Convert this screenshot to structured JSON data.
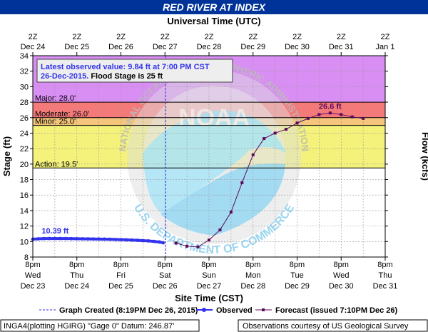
{
  "header": {
    "title": "RED RIVER AT INDEX"
  },
  "top_axis": {
    "title": "Universal Time (UTC)",
    "ticks": [
      {
        "x": 0,
        "l1": "2Z",
        "l2": "Dec 24"
      },
      {
        "x": 1,
        "l1": "2Z",
        "l2": "Dec 25"
      },
      {
        "x": 2,
        "l1": "2Z",
        "l2": "Dec 26"
      },
      {
        "x": 3,
        "l1": "2Z",
        "l2": "Dec 27"
      },
      {
        "x": 4,
        "l1": "2Z",
        "l2": "Dec 28"
      },
      {
        "x": 5,
        "l1": "2Z",
        "l2": "Dec 29"
      },
      {
        "x": 6,
        "l1": "2Z",
        "l2": "Dec 30"
      },
      {
        "x": 7,
        "l1": "2Z",
        "l2": "Dec 31"
      },
      {
        "x": 8,
        "l1": "2Z",
        "l2": "Jan  1"
      }
    ]
  },
  "info_box": {
    "line1": "Latest observed value: 9.84 ft at 7:00 PM CST",
    "date": "26-Dec-2015.",
    "flood_text": " Flood Stage is 25 ft"
  },
  "legend": {
    "graph_created": "Graph Created (8:19PM Dec 26, 2015)",
    "observed": "Observed",
    "forecast": "Forecast (issued 7:10PM Dec 26)"
  },
  "footer": {
    "datum": "INGA4(plotting HGIRG) \"Gage 0\" Datum: 246.87'",
    "credit": "Observations courtesy of US Geological Survey"
  },
  "watermark": {
    "ring_text": "NATIONAL OCEANIC AND ATMOSPHERIC ADMINISTRATION",
    "logo_text": "NOAA",
    "commerce_text": "U.S. DEPARTMENT OF COMMERCE"
  },
  "colors": {
    "title_bg": "#003399",
    "major": "#d88ef2",
    "moderate": "#f47a7a",
    "minor": "#f4c57a",
    "action": "#f4f27a",
    "observed": "#3333ee",
    "forecast": "#5a0a5a",
    "created_line": "#3333ee",
    "info_text": "#3333ee"
  },
  "chart_data": {
    "type": "line",
    "title": "RED RIVER AT INDEX",
    "xlabel": "Site Time (CST)",
    "ylabel": "Stage (ft)",
    "ylabel_right": "Flow (kcfs)",
    "x_unit_note": "x values are days after 8pm Wed Dec 23 (CST)",
    "xlim": [
      0,
      8
    ],
    "ylim": [
      8,
      34
    ],
    "yticks": [
      8,
      10,
      12,
      14,
      16,
      18,
      20,
      22,
      24,
      26,
      28,
      30,
      32,
      34
    ],
    "x_ticks": [
      {
        "x": 0,
        "l1": "8pm",
        "l2": "Wed",
        "l3": "Dec 23"
      },
      {
        "x": 1,
        "l1": "8pm",
        "l2": "Thu",
        "l3": "Dec 24"
      },
      {
        "x": 2,
        "l1": "8pm",
        "l2": "Fri",
        "l3": "Dec 25"
      },
      {
        "x": 3,
        "l1": "8pm",
        "l2": "Sat",
        "l3": "Dec 26"
      },
      {
        "x": 4,
        "l1": "8pm",
        "l2": "Sun",
        "l3": "Dec 27"
      },
      {
        "x": 5,
        "l1": "8pm",
        "l2": "Mon",
        "l3": "Dec 28"
      },
      {
        "x": 6,
        "l1": "8pm",
        "l2": "Tue",
        "l3": "Dec 29"
      },
      {
        "x": 7,
        "l1": "8pm",
        "l2": "Wed",
        "l3": "Dec 30"
      },
      {
        "x": 8,
        "l1": "8pm",
        "l2": "Thu",
        "l3": "Dec 31"
      }
    ],
    "grid": true,
    "flood_categories": [
      {
        "name": "major",
        "label": "Major: 28.0'",
        "from": 28.0,
        "to": 34
      },
      {
        "name": "moderate",
        "label": "Moderate: 26.0'",
        "from": 26.0,
        "to": 28.0
      },
      {
        "name": "minor",
        "label": "Minor: 25.0'",
        "from": 25.0,
        "to": 26.0
      },
      {
        "name": "action",
        "label": "Action: 19.5'",
        "from": 19.5,
        "to": 25.0
      }
    ],
    "graph_created_x": 3.014,
    "observed": {
      "name": "Observed",
      "label": "10.39 ft",
      "label_x": 0.2,
      "points": [
        [
          0.0,
          10.3
        ],
        [
          0.125,
          10.35
        ],
        [
          0.25,
          10.38
        ],
        [
          0.375,
          10.39
        ],
        [
          0.5,
          10.39
        ],
        [
          0.625,
          10.39
        ],
        [
          0.75,
          10.38
        ],
        [
          0.875,
          10.37
        ],
        [
          1.0,
          10.36
        ],
        [
          1.125,
          10.35
        ],
        [
          1.25,
          10.34
        ],
        [
          1.375,
          10.33
        ],
        [
          1.5,
          10.32
        ],
        [
          1.625,
          10.31
        ],
        [
          1.75,
          10.29
        ],
        [
          1.875,
          10.27
        ],
        [
          2.0,
          10.25
        ],
        [
          2.125,
          10.22
        ],
        [
          2.25,
          10.19
        ],
        [
          2.375,
          10.16
        ],
        [
          2.5,
          10.12
        ],
        [
          2.625,
          10.08
        ],
        [
          2.75,
          10.02
        ],
        [
          2.875,
          9.94
        ],
        [
          2.958,
          9.84
        ]
      ]
    },
    "forecast": {
      "name": "Forecast (issued 7:10PM Dec 26)",
      "peak_label": "26.6 ft",
      "points": [
        [
          3.25,
          9.8
        ],
        [
          3.5,
          9.4
        ],
        [
          3.75,
          9.3
        ],
        [
          4.0,
          10.2
        ],
        [
          4.25,
          11.5
        ],
        [
          4.5,
          13.8
        ],
        [
          4.75,
          17.6
        ],
        [
          5.0,
          21.2
        ],
        [
          5.25,
          23.3
        ],
        [
          5.5,
          24.0
        ],
        [
          5.75,
          24.5
        ],
        [
          6.0,
          25.3
        ],
        [
          6.25,
          25.9
        ],
        [
          6.5,
          26.4
        ],
        [
          6.75,
          26.6
        ],
        [
          7.0,
          26.4
        ],
        [
          7.25,
          26.1
        ],
        [
          7.5,
          25.9
        ]
      ]
    }
  }
}
